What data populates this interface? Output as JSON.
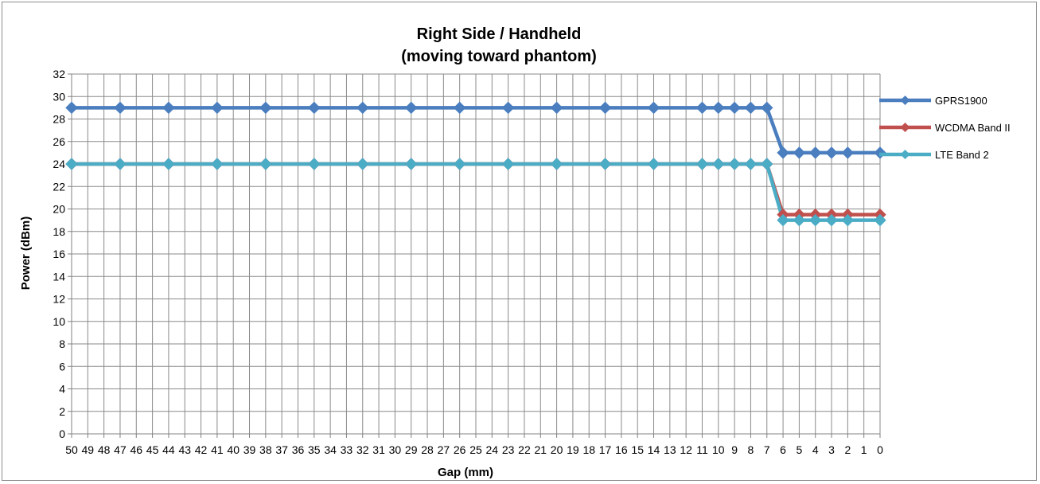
{
  "chart_data": {
    "type": "line",
    "title_line1": "Right Side / Handheld",
    "title_line2": "(moving toward phantom)",
    "xlabel": "Gap (mm)",
    "ylabel": "Power (dBm)",
    "ylim": [
      0,
      32
    ],
    "y_ticks": [
      0,
      2,
      4,
      6,
      8,
      10,
      12,
      14,
      16,
      18,
      20,
      22,
      24,
      26,
      28,
      30,
      32
    ],
    "grid": true,
    "legend_position": "right",
    "categories": [
      "50",
      "49",
      "48",
      "47",
      "46",
      "45",
      "44",
      "43",
      "42",
      "41",
      "40",
      "39",
      "38",
      "37",
      "36",
      "35",
      "34",
      "33",
      "32",
      "31",
      "30",
      "29",
      "28",
      "27",
      "26",
      "25",
      "24",
      "23",
      "22",
      "21",
      "20",
      "19",
      "18",
      "17",
      "16",
      "15",
      "14",
      "13",
      "12",
      "11",
      "10",
      "9",
      "8",
      "7",
      "6",
      "5",
      "4",
      "3",
      "2",
      "1",
      "0"
    ],
    "series": [
      {
        "name": "GPRS1900",
        "color": "#4a7ebf",
        "points": [
          [
            50,
            29
          ],
          [
            47,
            29
          ],
          [
            44,
            29
          ],
          [
            41,
            29
          ],
          [
            38,
            29
          ],
          [
            35,
            29
          ],
          [
            32,
            29
          ],
          [
            29,
            29
          ],
          [
            26,
            29
          ],
          [
            23,
            29
          ],
          [
            20,
            29
          ],
          [
            17,
            29
          ],
          [
            14,
            29
          ],
          [
            11,
            29
          ],
          [
            10,
            29
          ],
          [
            9,
            29
          ],
          [
            8,
            29
          ],
          [
            7,
            29
          ],
          [
            6,
            25
          ],
          [
            5,
            25
          ],
          [
            4,
            25
          ],
          [
            3,
            25
          ],
          [
            2,
            25
          ],
          [
            0,
            25
          ]
        ]
      },
      {
        "name": "WCDMA Band II",
        "color": "#c0504d",
        "points": [
          [
            50,
            24
          ],
          [
            47,
            24
          ],
          [
            44,
            24
          ],
          [
            41,
            24
          ],
          [
            38,
            24
          ],
          [
            35,
            24
          ],
          [
            32,
            24
          ],
          [
            29,
            24
          ],
          [
            26,
            24
          ],
          [
            23,
            24
          ],
          [
            20,
            24
          ],
          [
            17,
            24
          ],
          [
            14,
            24
          ],
          [
            11,
            24
          ],
          [
            10,
            24
          ],
          [
            9,
            24
          ],
          [
            8,
            24
          ],
          [
            7,
            24
          ],
          [
            6,
            19.5
          ],
          [
            5,
            19.5
          ],
          [
            4,
            19.5
          ],
          [
            3,
            19.5
          ],
          [
            2,
            19.5
          ],
          [
            0,
            19.5
          ]
        ]
      },
      {
        "name": "LTE Band 2",
        "color": "#4bacc6",
        "points": [
          [
            50,
            24
          ],
          [
            47,
            24
          ],
          [
            44,
            24
          ],
          [
            41,
            24
          ],
          [
            38,
            24
          ],
          [
            35,
            24
          ],
          [
            32,
            24
          ],
          [
            29,
            24
          ],
          [
            26,
            24
          ],
          [
            23,
            24
          ],
          [
            20,
            24
          ],
          [
            17,
            24
          ],
          [
            14,
            24
          ],
          [
            11,
            24
          ],
          [
            10,
            24
          ],
          [
            9,
            24
          ],
          [
            8,
            24
          ],
          [
            7,
            24
          ],
          [
            6,
            19
          ],
          [
            5,
            19
          ],
          [
            4,
            19
          ],
          [
            3,
            19
          ],
          [
            2,
            19
          ],
          [
            0,
            19
          ]
        ]
      }
    ]
  }
}
